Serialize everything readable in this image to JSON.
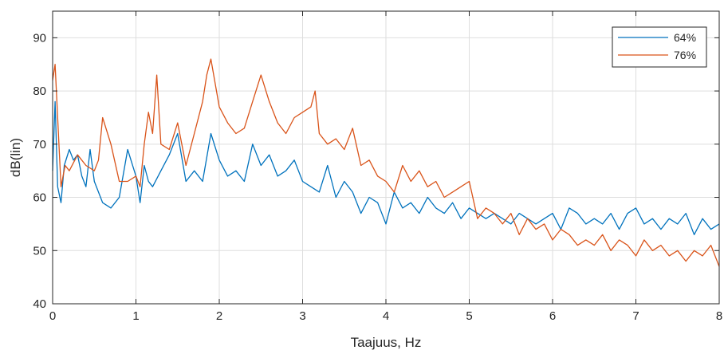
{
  "chart_data": {
    "type": "line",
    "xlabel": "Taajuus, Hz",
    "ylabel": "dB(lin)",
    "xlim": [
      0,
      8
    ],
    "ylim": [
      40,
      95
    ],
    "xticks": [
      0,
      1,
      2,
      3,
      4,
      5,
      6,
      7,
      8
    ],
    "yticks": [
      40,
      50,
      60,
      70,
      80,
      90
    ],
    "grid": true,
    "legend_position": "top-right",
    "series": [
      {
        "name": "64%",
        "color": "#0072BD",
        "x": [
          0,
          0.03,
          0.06,
          0.1,
          0.14,
          0.2,
          0.25,
          0.3,
          0.35,
          0.4,
          0.45,
          0.5,
          0.6,
          0.7,
          0.8,
          0.9,
          1.0,
          1.05,
          1.1,
          1.15,
          1.2,
          1.3,
          1.4,
          1.5,
          1.6,
          1.7,
          1.8,
          1.9,
          2.0,
          2.1,
          2.2,
          2.3,
          2.4,
          2.5,
          2.6,
          2.7,
          2.8,
          2.9,
          3.0,
          3.1,
          3.2,
          3.3,
          3.4,
          3.5,
          3.6,
          3.7,
          3.8,
          3.9,
          4.0,
          4.1,
          4.2,
          4.3,
          4.4,
          4.5,
          4.6,
          4.7,
          4.8,
          4.9,
          5.0,
          5.1,
          5.2,
          5.3,
          5.4,
          5.5,
          5.6,
          5.7,
          5.8,
          5.9,
          6.0,
          6.1,
          6.2,
          6.3,
          6.4,
          6.5,
          6.6,
          6.7,
          6.8,
          6.9,
          7.0,
          7.1,
          7.2,
          7.3,
          7.4,
          7.5,
          7.6,
          7.7,
          7.8,
          7.9,
          8.0
        ],
        "values": [
          65,
          78,
          62,
          59,
          66,
          69,
          67,
          68,
          64,
          62,
          69,
          63,
          59,
          58,
          60,
          69,
          64,
          59,
          66,
          63,
          62,
          65,
          68,
          72,
          63,
          65,
          63,
          72,
          67,
          64,
          65,
          63,
          70,
          66,
          68,
          64,
          65,
          67,
          63,
          62,
          61,
          66,
          60,
          63,
          61,
          57,
          60,
          59,
          55,
          61,
          58,
          59,
          57,
          60,
          58,
          57,
          59,
          56,
          58,
          57,
          56,
          57,
          56,
          55,
          57,
          56,
          55,
          56,
          57,
          54,
          58,
          57,
          55,
          56,
          55,
          57,
          54,
          57,
          58,
          55,
          56,
          54,
          56,
          55,
          57,
          53,
          56,
          54,
          55
        ]
      },
      {
        "name": "76%",
        "color": "#D95319",
        "x": [
          0,
          0.03,
          0.06,
          0.1,
          0.15,
          0.2,
          0.3,
          0.4,
          0.5,
          0.55,
          0.6,
          0.7,
          0.8,
          0.9,
          1.0,
          1.05,
          1.1,
          1.15,
          1.2,
          1.25,
          1.3,
          1.4,
          1.5,
          1.6,
          1.7,
          1.8,
          1.85,
          1.9,
          2.0,
          2.1,
          2.2,
          2.3,
          2.4,
          2.5,
          2.6,
          2.7,
          2.8,
          2.9,
          3.0,
          3.1,
          3.15,
          3.2,
          3.3,
          3.4,
          3.5,
          3.6,
          3.7,
          3.8,
          3.9,
          4.0,
          4.1,
          4.2,
          4.3,
          4.4,
          4.5,
          4.6,
          4.7,
          4.8,
          4.9,
          5.0,
          5.1,
          5.2,
          5.3,
          5.4,
          5.5,
          5.6,
          5.7,
          5.8,
          5.9,
          6.0,
          6.1,
          6.2,
          6.3,
          6.4,
          6.5,
          6.6,
          6.7,
          6.8,
          6.9,
          7.0,
          7.1,
          7.2,
          7.3,
          7.4,
          7.5,
          7.6,
          7.7,
          7.8,
          7.9,
          8.0
        ],
        "values": [
          82,
          85,
          75,
          62,
          66,
          65,
          68,
          66,
          65,
          67,
          75,
          70,
          63,
          63,
          64,
          62,
          70,
          76,
          72,
          83,
          70,
          69,
          74,
          66,
          72,
          78,
          83,
          86,
          77,
          74,
          72,
          73,
          78,
          83,
          78,
          74,
          72,
          75,
          76,
          77,
          80,
          72,
          70,
          71,
          69,
          73,
          66,
          67,
          64,
          63,
          61,
          66,
          63,
          65,
          62,
          63,
          60,
          61,
          62,
          63,
          56,
          58,
          57,
          55,
          57,
          53,
          56,
          54,
          55,
          52,
          54,
          53,
          51,
          52,
          51,
          53,
          50,
          52,
          51,
          49,
          52,
          50,
          51,
          49,
          50,
          48,
          50,
          49,
          51,
          47
        ]
      }
    ]
  }
}
